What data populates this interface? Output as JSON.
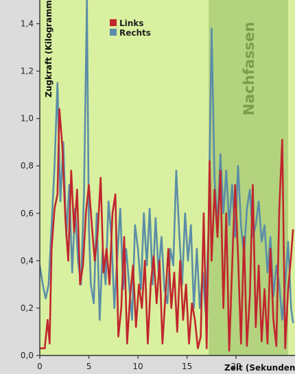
{
  "chart_data": {
    "type": "line",
    "ylabel": "Zugkraft (Kilogramm)",
    "xlabel": "Zeit (Sekunden)",
    "xlim": [
      0,
      26
    ],
    "ylim": [
      0,
      1.5
    ],
    "xticks": [
      0,
      5,
      10,
      15,
      20
    ],
    "xtick_labels": [
      "0",
      "5",
      "10",
      "15",
      "20"
    ],
    "yticks": [
      0,
      0.2,
      0.4,
      0.6,
      0.8,
      1.0,
      1.2,
      1.4
    ],
    "ytick_labels": [
      "0,0",
      "0,2",
      "0,4",
      "0,6",
      "0,8",
      "1,0",
      "1,2",
      "1,4"
    ],
    "grid": false,
    "legend_position": "top-center",
    "shaded_region": {
      "label": "Nachfassen",
      "x": [
        17.2,
        25.3
      ]
    },
    "colors": {
      "plot_background": "#d9f0a0",
      "shaded_region": "#b3d37e",
      "band_label": "#7c9c4c"
    },
    "series": [
      {
        "name": "Links",
        "color": "#c0262d",
        "x": [
          0,
          0.5,
          0.8,
          1,
          1.2,
          1.5,
          1.8,
          2,
          2.3,
          2.6,
          2.9,
          3.2,
          3.5,
          3.8,
          4.1,
          4.4,
          4.7,
          5,
          5.3,
          5.6,
          5.9,
          6.2,
          6.5,
          6.8,
          7.1,
          7.4,
          7.7,
          8,
          8.3,
          8.6,
          8.9,
          9.2,
          9.5,
          9.8,
          10.1,
          10.4,
          10.7,
          11,
          11.3,
          11.6,
          11.9,
          12.2,
          12.5,
          12.8,
          13.1,
          13.4,
          13.7,
          14,
          14.3,
          14.6,
          14.9,
          15.2,
          15.5,
          15.8,
          16.1,
          16.4,
          16.7,
          17,
          17.3,
          17.5,
          17.8,
          18.1,
          18.4,
          18.7,
          19,
          19.3,
          19.6,
          19.9,
          20.2,
          20.5,
          20.8,
          21.1,
          21.4,
          21.7,
          22,
          22.3,
          22.6,
          22.9,
          23.2,
          23.5,
          23.8,
          24.1,
          24.4,
          24.7,
          25,
          25.3,
          25.6,
          25.8
        ],
        "values": [
          0.03,
          0.03,
          0.15,
          0.05,
          0.45,
          0.62,
          0.68,
          1.04,
          0.88,
          0.58,
          0.4,
          0.78,
          0.52,
          0.7,
          0.3,
          0.38,
          0.6,
          0.72,
          0.55,
          0.4,
          0.52,
          0.75,
          0.35,
          0.45,
          0.3,
          0.6,
          0.68,
          0.08,
          0.2,
          0.5,
          0.05,
          0.25,
          0.38,
          0.12,
          0.3,
          0.2,
          0.4,
          0.05,
          0.3,
          0.42,
          0.22,
          0.4,
          0.05,
          0.25,
          0.45,
          0.2,
          0.35,
          0.1,
          0.4,
          0.15,
          0.3,
          0.05,
          0.22,
          0.15,
          0.03,
          0.08,
          0.6,
          0.03,
          0.82,
          0.4,
          0.7,
          0.5,
          0.78,
          0.2,
          0.6,
          0.02,
          0.38,
          0.72,
          0.42,
          0.05,
          0.5,
          0.04,
          0.25,
          0.72,
          0.12,
          0.38,
          0.06,
          0.28,
          0.05,
          0.45,
          0.15,
          0.04,
          0.62,
          0.91,
          0.03,
          0.28,
          0.42,
          0.53
        ]
      },
      {
        "name": "Rechts",
        "color": "#5b8da8",
        "x": [
          0,
          0.3,
          0.6,
          0.9,
          1.2,
          1.5,
          1.8,
          2.1,
          2.4,
          2.7,
          3,
          3.3,
          3.6,
          3.9,
          4.2,
          4.5,
          4.8,
          5,
          5.2,
          5.5,
          5.8,
          6.1,
          6.4,
          6.7,
          7,
          7.3,
          7.6,
          7.9,
          8.2,
          8.5,
          8.8,
          9.1,
          9.4,
          9.7,
          10,
          10.3,
          10.6,
          10.9,
          11.2,
          11.5,
          11.8,
          12.1,
          12.4,
          12.7,
          13,
          13.3,
          13.6,
          13.9,
          14.2,
          14.5,
          14.8,
          15.1,
          15.4,
          15.7,
          16,
          16.3,
          16.6,
          16.9,
          17.2,
          17.5,
          17.8,
          18.1,
          18.4,
          18.7,
          19,
          19.3,
          19.6,
          19.9,
          20.2,
          20.5,
          20.8,
          21.1,
          21.4,
          21.7,
          22,
          22.3,
          22.6,
          22.9,
          23.2,
          23.5,
          23.8,
          24.1,
          24.4,
          24.7,
          25,
          25.3,
          25.6,
          25.8
        ],
        "values": [
          0.38,
          0.3,
          0.24,
          0.3,
          0.55,
          0.8,
          1.15,
          0.65,
          0.9,
          0.5,
          0.72,
          0.35,
          0.62,
          0.4,
          0.3,
          0.68,
          1.5,
          0.55,
          0.3,
          0.22,
          0.6,
          0.15,
          0.45,
          0.3,
          0.65,
          0.5,
          0.2,
          0.42,
          0.62,
          0.28,
          0.45,
          0.3,
          0.15,
          0.55,
          0.45,
          0.28,
          0.6,
          0.38,
          0.62,
          0.3,
          0.58,
          0.35,
          0.5,
          0.28,
          0.22,
          0.45,
          0.38,
          0.78,
          0.52,
          0.3,
          0.6,
          0.4,
          0.55,
          0.2,
          0.45,
          0.2,
          0.35,
          0.18,
          0.55,
          1.38,
          0.75,
          0.55,
          0.85,
          0.6,
          0.78,
          0.55,
          0.72,
          0.5,
          0.8,
          0.55,
          0.42,
          0.62,
          0.7,
          0.5,
          0.55,
          0.65,
          0.48,
          0.55,
          0.35,
          0.5,
          0.25,
          0.38,
          0.3,
          0.15,
          0.3,
          0.48,
          0.2,
          0.14
        ]
      }
    ]
  }
}
